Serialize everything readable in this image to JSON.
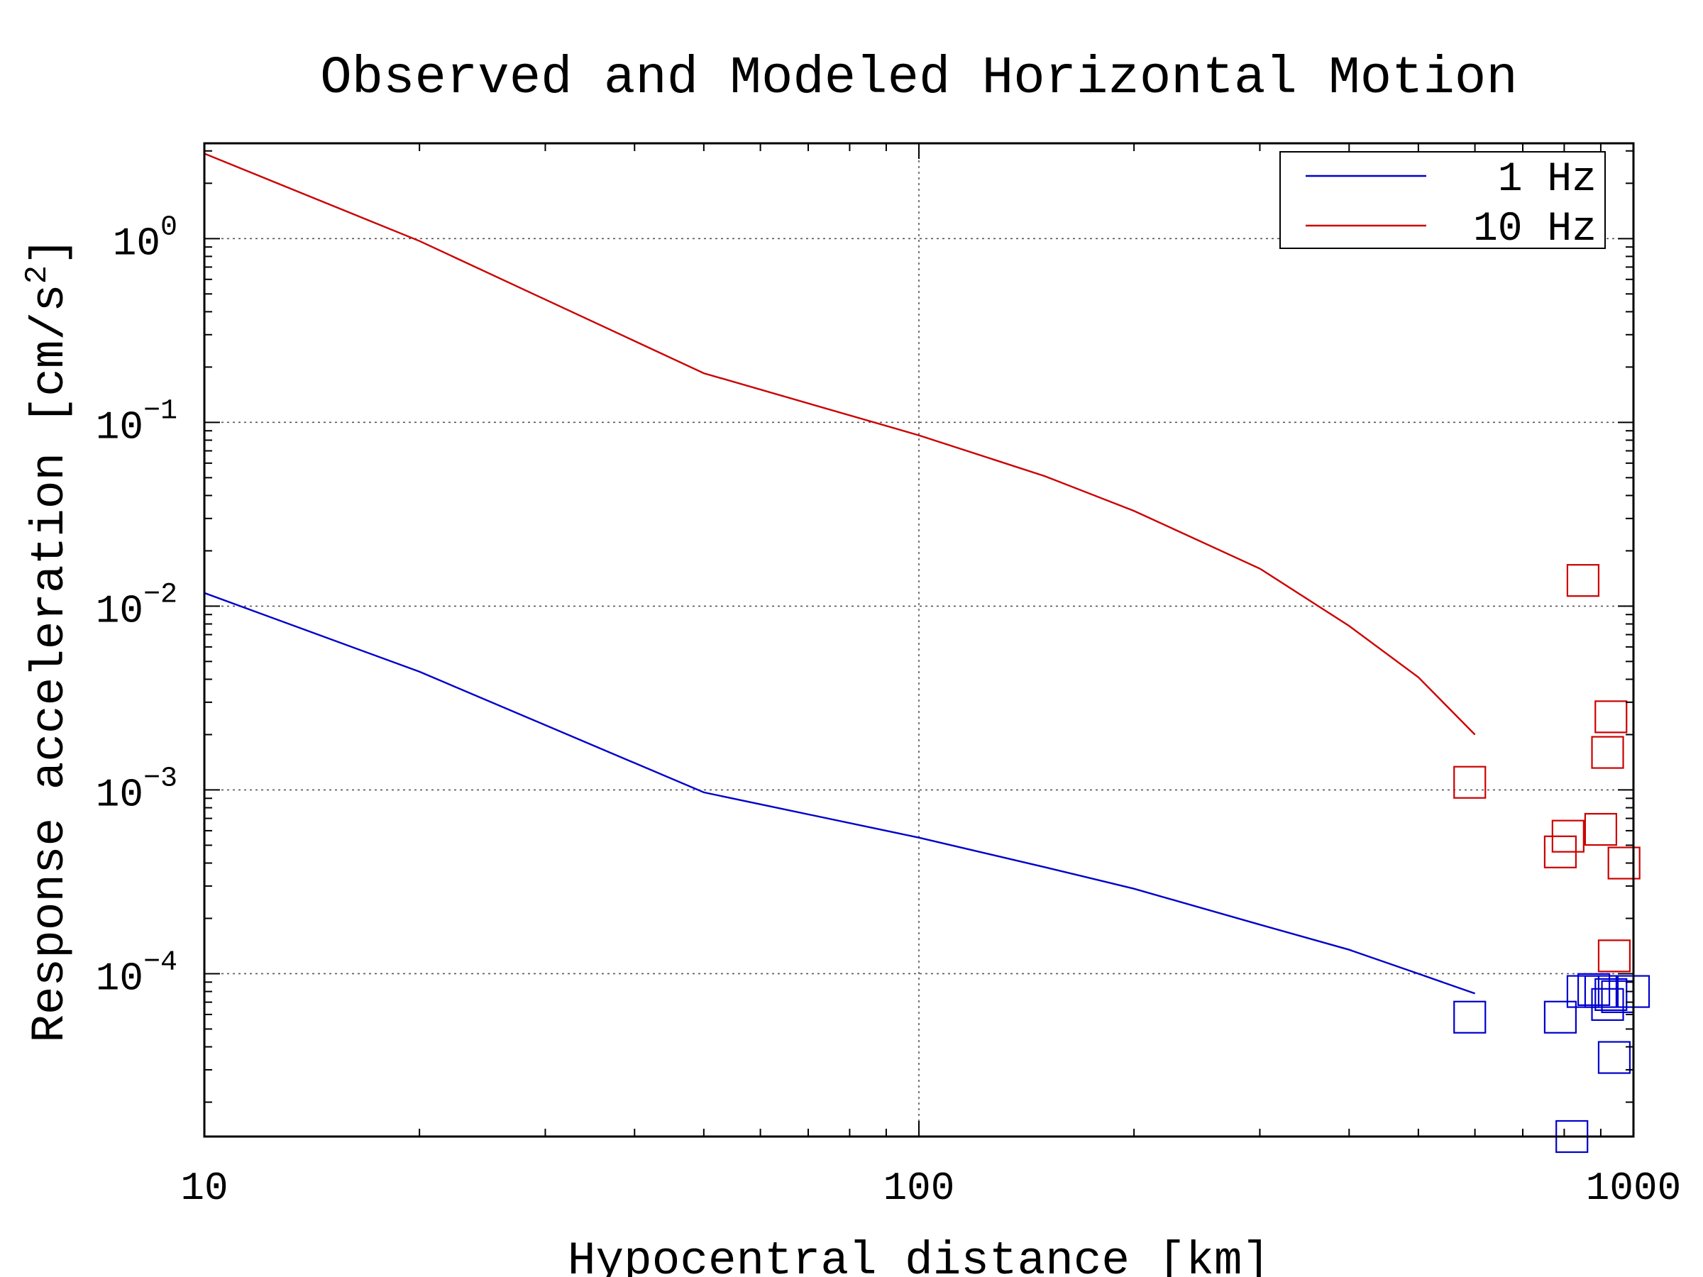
{
  "chart_data": {
    "type": "line",
    "title": "Observed and Modeled Horizontal Motion",
    "xlabel": "Hypocentral distance [km]",
    "ylabel": "Response acceleration [cm/s^2]",
    "ylabel_parts": {
      "main": "Response acceleration [cm/s",
      "sup": "2",
      "close": "]"
    },
    "x_scale": "log",
    "y_scale": "log",
    "xlim": [
      10,
      1000
    ],
    "ylim": [
      1.3e-05,
      3.3
    ],
    "x_ticks": [
      {
        "value": 10,
        "label": "10"
      },
      {
        "value": 100,
        "label": "100"
      },
      {
        "value": 1000,
        "label": "1000"
      }
    ],
    "y_ticks": [
      {
        "value": 1,
        "base": "10",
        "exp": "0"
      },
      {
        "value": 0.1,
        "base": "10",
        "exp": "−1"
      },
      {
        "value": 0.01,
        "base": "10",
        "exp": "−2"
      },
      {
        "value": 0.001,
        "base": "10",
        "exp": "−3"
      },
      {
        "value": 0.0001,
        "base": "10",
        "exp": "−4"
      }
    ],
    "grid": true,
    "legend_position": "top-right",
    "series": [
      {
        "name": "1 Hz",
        "color": "#0000cc",
        "points": [
          [
            10,
            0.0118
          ],
          [
            20,
            0.0044
          ],
          [
            50,
            0.00097
          ],
          [
            100,
            0.00055
          ],
          [
            150,
            0.00038
          ],
          [
            200,
            0.00029
          ],
          [
            300,
            0.000185
          ],
          [
            400,
            0.000135
          ],
          [
            500,
            0.0001
          ],
          [
            600,
            7.8e-05
          ]
        ],
        "observed": [
          [
            590,
            5.8e-05
          ],
          [
            790,
            5.8e-05
          ],
          [
            820,
            1.3e-05
          ],
          [
            850,
            8e-05
          ],
          [
            880,
            8.2e-05
          ],
          [
            900,
            8e-05
          ],
          [
            920,
            6.8e-05
          ],
          [
            930,
            7.7e-05
          ],
          [
            940,
            3.5e-05
          ],
          [
            950,
            7.5e-05
          ],
          [
            1000,
            8e-05
          ]
        ]
      },
      {
        "name": "10 Hz",
        "color": "#cc0000",
        "points": [
          [
            10,
            2.9
          ],
          [
            20,
            0.97
          ],
          [
            50,
            0.185
          ],
          [
            100,
            0.085
          ],
          [
            150,
            0.051
          ],
          [
            200,
            0.033
          ],
          [
            300,
            0.016
          ],
          [
            400,
            0.0078
          ],
          [
            500,
            0.0041
          ],
          [
            600,
            0.002
          ]
        ],
        "observed": [
          [
            590,
            0.0011
          ],
          [
            790,
            0.00046
          ],
          [
            810,
            0.00056
          ],
          [
            850,
            0.0138
          ],
          [
            900,
            0.00061
          ],
          [
            920,
            0.0016
          ],
          [
            930,
            0.0025
          ],
          [
            940,
            0.000125
          ],
          [
            970,
            0.0004
          ]
        ]
      }
    ]
  }
}
